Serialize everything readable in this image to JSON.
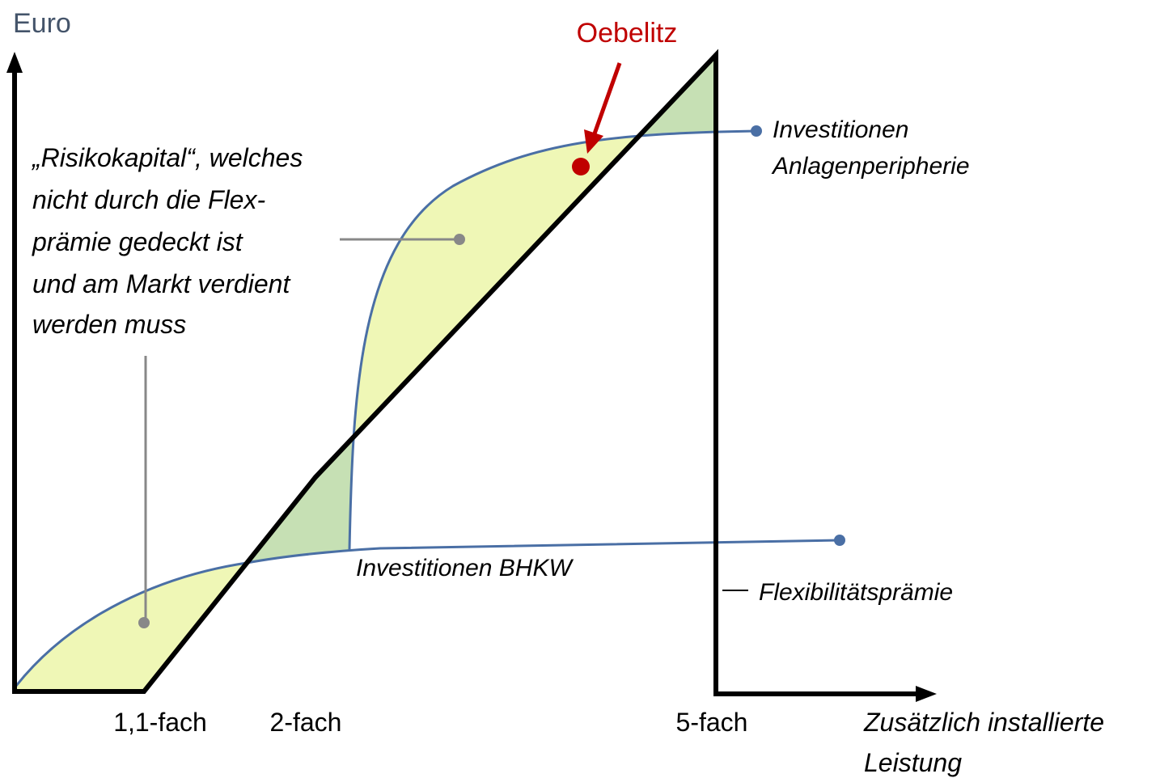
{
  "y_axis_label": "Euro",
  "x_axis_label": [
    "Zusätzlich installierte",
    "Leistung"
  ],
  "x_ticks": [
    "1,1-fach",
    "2-fach",
    "5-fach"
  ],
  "highlight": "Oebelitz",
  "risk_note": [
    "„Risikokapital“, welches",
    "nicht durch die Flex-",
    "prämie gedeckt ist",
    "und am Markt verdient",
    "werden muss"
  ],
  "curves": {
    "periphery": [
      "Investitionen",
      "Anlagenperipherie"
    ],
    "bhkw": "Investitionen BHKW",
    "flex": "Flexibilitätsprämie"
  }
}
